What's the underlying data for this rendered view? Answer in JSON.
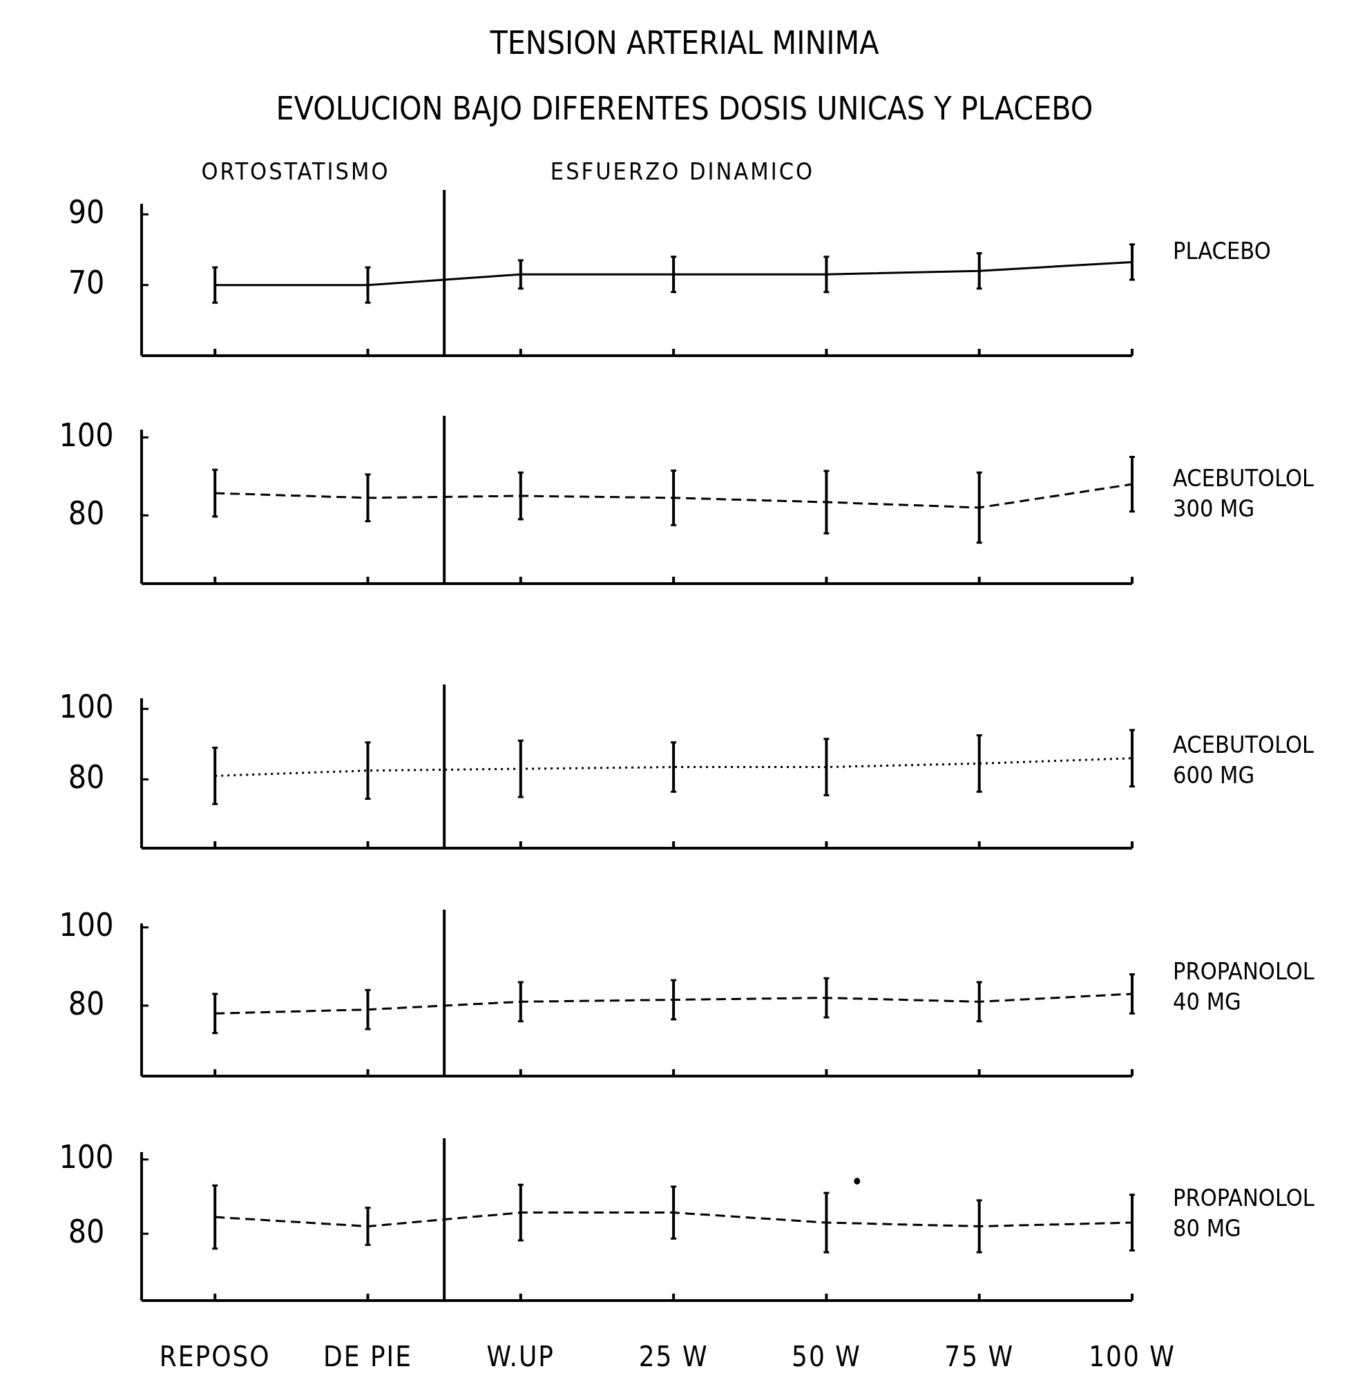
{
  "chart_data": [
    {
      "type": "line",
      "title": "TENSION ARTERIAL MINIMA",
      "subtitle": "EVOLUCION BAJO DIFERENTES DOSIS UNICAS Y PLACEBO",
      "annotations": [
        "ORTOSTATISMO",
        "ESFUERZO DINAMICO"
      ],
      "categories": [
        null,
        null,
        null,
        null,
        null,
        null,
        null
      ],
      "tick_labels": "y",
      "ylim": [
        50,
        93
      ],
      "yticks": [
        70,
        90
      ],
      "marker": "none",
      "series": [
        {
          "name": "PLACEBO",
          "color": "#000000",
          "line_style": "solid",
          "values": [
            70,
            70,
            73,
            73,
            73,
            74,
            76.5
          ],
          "errors": [
            5,
            5,
            4,
            5,
            5,
            5,
            5
          ]
        }
      ]
    },
    {
      "type": "line",
      "categories": [
        null,
        null,
        null,
        null,
        null,
        null,
        null
      ],
      "tick_labels": "y",
      "ylim": [
        62.5,
        102
      ],
      "yticks": [
        80,
        100
      ],
      "marker": "none",
      "series": [
        {
          "name": "ACEBUTOLOL 300 MG",
          "color": "#000000",
          "line_style": "dashed",
          "values": [
            85.7,
            84.5,
            85,
            84.5,
            83.4,
            82,
            88
          ],
          "errors": [
            6,
            6,
            6,
            7,
            8,
            9,
            7
          ]
        }
      ]
    },
    {
      "type": "line",
      "categories": [
        null,
        null,
        null,
        null,
        null,
        null,
        null
      ],
      "tick_labels": "y",
      "ylim": [
        60.5,
        103
      ],
      "yticks": [
        80,
        100
      ],
      "marker": "none",
      "series": [
        {
          "name": "ACEBUTOLOL 600 MG",
          "color": "#000000",
          "line_style": "dotted",
          "values": [
            81,
            82.5,
            83,
            83.5,
            83.5,
            84.5,
            86
          ],
          "errors": [
            8,
            8,
            8,
            7,
            8,
            8,
            8
          ]
        }
      ]
    },
    {
      "type": "line",
      "categories": [
        null,
        null,
        null,
        null,
        null,
        null,
        null
      ],
      "tick_labels": "y",
      "ylim": [
        62,
        101
      ],
      "yticks": [
        80,
        100
      ],
      "marker": "none",
      "series": [
        {
          "name": "PROPANOLOL 40 MG",
          "color": "#000000",
          "line_style": "dashed",
          "values": [
            78,
            79,
            81,
            81.5,
            82,
            81,
            83
          ],
          "errors": [
            5,
            5,
            5,
            5,
            5,
            5,
            5
          ]
        }
      ]
    },
    {
      "type": "line",
      "annotations": [
        "•"
      ],
      "categories": [
        "REPOSO",
        "DE PIE",
        "W.UP",
        "25 W",
        "50 W",
        "75 W",
        "100 W"
      ],
      "ylim": [
        62,
        102
      ],
      "yticks": [
        80,
        100
      ],
      "marker": "none",
      "series": [
        {
          "name": "PROPANOLOL 80 MG",
          "color": "#000000",
          "line_style": "dashed",
          "values": [
            84.5,
            82,
            85.7,
            85.7,
            83,
            82,
            83
          ],
          "errors": [
            8.5,
            5,
            7.5,
            7,
            8,
            7,
            7.5
          ]
        }
      ]
    }
  ]
}
